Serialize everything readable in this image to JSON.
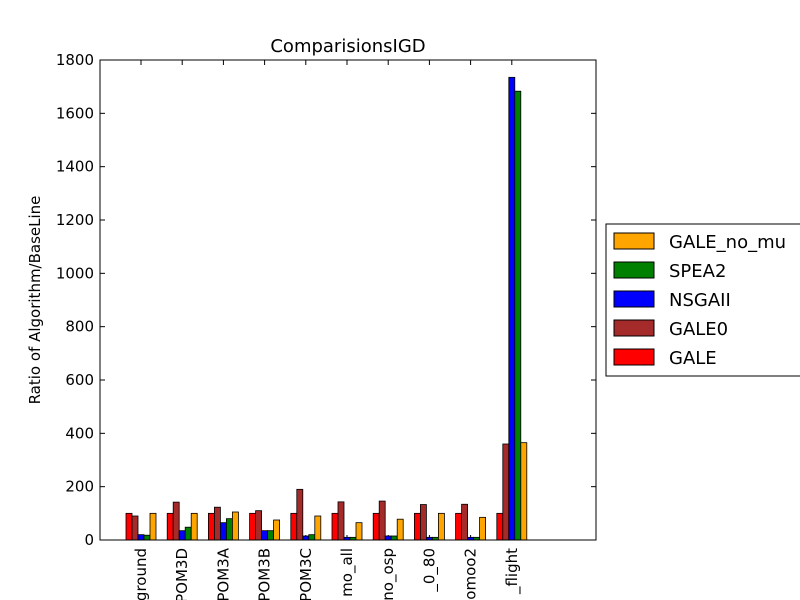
{
  "chart_data": {
    "type": "bar",
    "title": "ComparisionsIGD",
    "xlabel": "",
    "ylabel": "Ratio of Algorithm/BaseLine",
    "ylim": [
      0,
      1800
    ],
    "yticks": [
      0,
      200,
      400,
      600,
      800,
      1000,
      1200,
      1400,
      1600,
      1800
    ],
    "categories": [
      "ground",
      "POM3D",
      "POM3A",
      "POM3B",
      "POM3C",
      "mo_all",
      "no_osp",
      "_0_80",
      "omoo2",
      "_flight"
    ],
    "series": [
      {
        "name": "GALE",
        "color": "#ff0000",
        "values": [
          100,
          100,
          100,
          100,
          100,
          100,
          100,
          100,
          100,
          100
        ]
      },
      {
        "name": "GALE0",
        "color": "#a52a2a",
        "values": [
          90,
          142,
          123,
          110,
          190,
          143,
          146,
          133,
          134,
          360
        ]
      },
      {
        "name": "NSGAII",
        "color": "#0000ff",
        "values": [
          20,
          35,
          65,
          35,
          15,
          10,
          15,
          10,
          10,
          1735
        ]
      },
      {
        "name": "SPEA2",
        "color": "#008000",
        "values": [
          18,
          48,
          80,
          35,
          20,
          10,
          15,
          10,
          10,
          1683
        ]
      },
      {
        "name": "GALE_no_mu",
        "color": "#ffa500",
        "values": [
          100,
          100,
          105,
          75,
          90,
          65,
          78,
          100,
          85,
          365
        ]
      }
    ],
    "legend": {
      "placement": "right-outside",
      "order": [
        "GALE_no_mu",
        "SPEA2",
        "NSGAII",
        "GALE0",
        "GALE"
      ]
    },
    "grid": false
  }
}
